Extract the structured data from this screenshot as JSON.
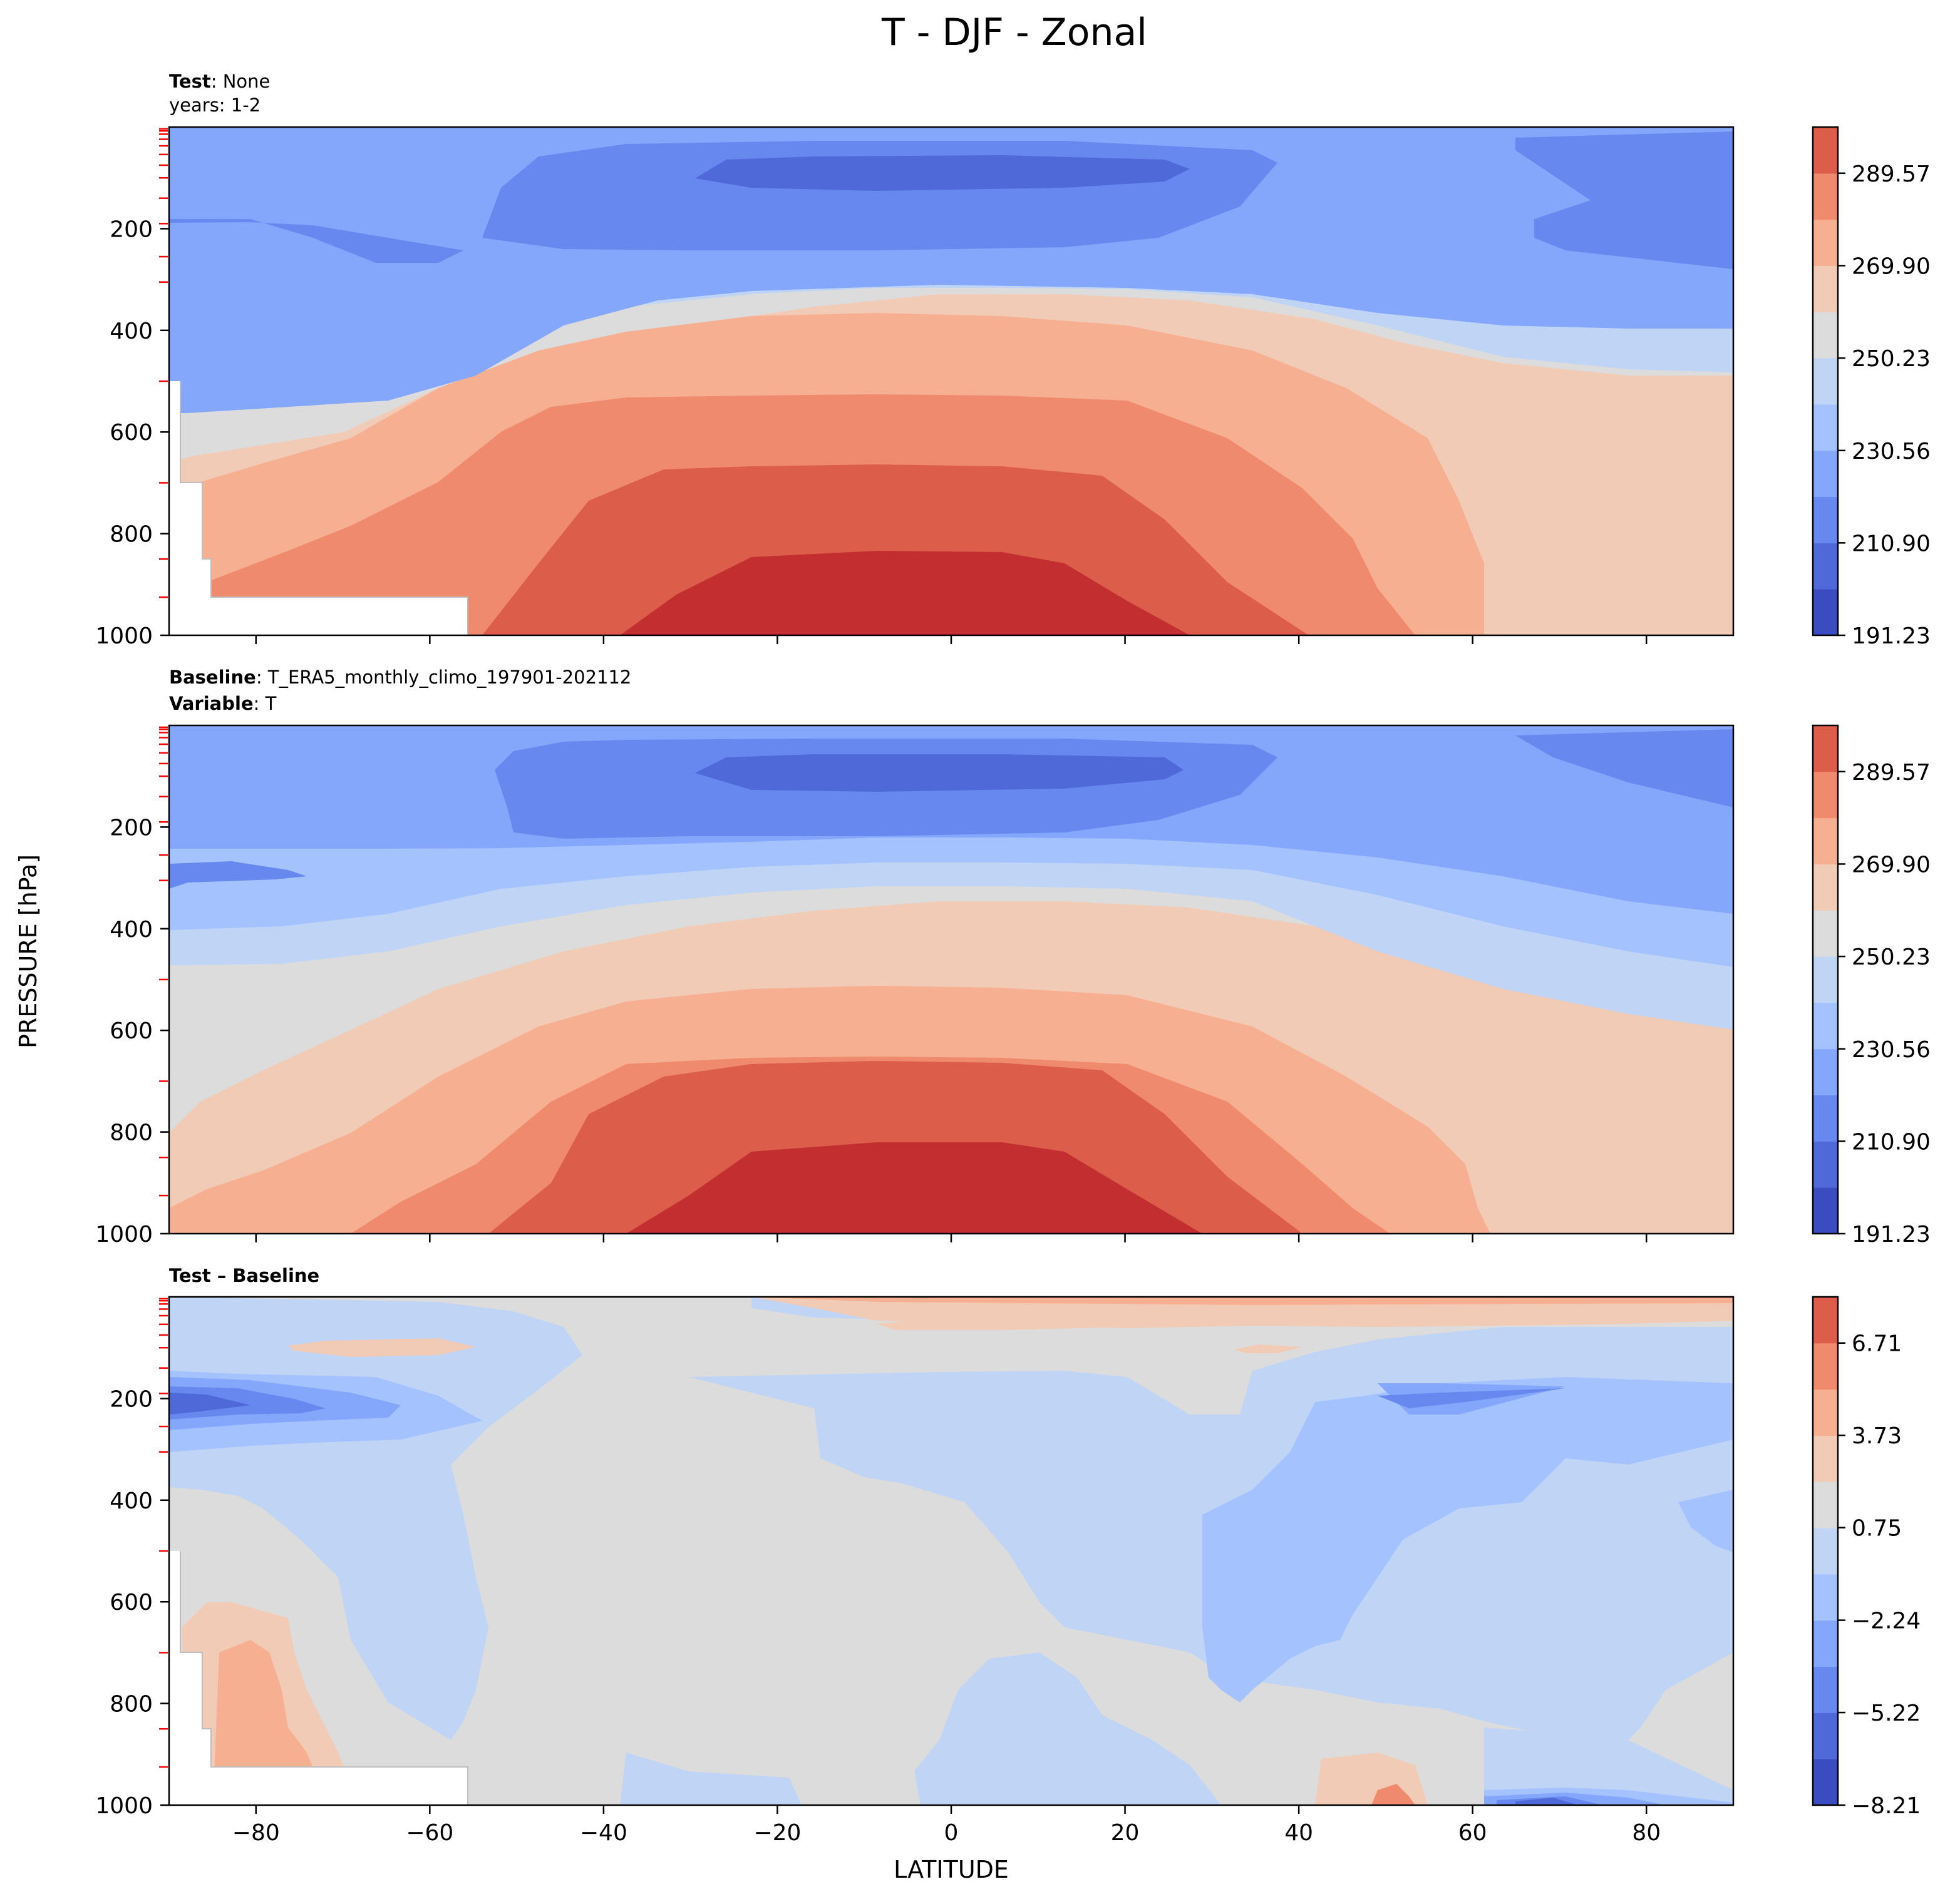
{
  "figure": {
    "suptitle": "T - DJF - Zonal",
    "ylabel": "PRESSURE [hPa]",
    "xlabel": "LATITUDE"
  },
  "palette": {
    "neg": [
      "#3a4cc0",
      "#4f69d9",
      "#6788ee",
      "#84a7fc",
      "#a3c2fe",
      "#c0d4f5"
    ],
    "zero": "#dcdcdc",
    "pos": [
      "#f2cbb7",
      "#f7af91",
      "#f08a6c",
      "#dc5d4a",
      "#c32e31"
    ],
    "axis": "#000000",
    "marker": "#ff0000",
    "missing": "#ffffff"
  },
  "x_ticks": [
    "−80",
    "−60",
    "−40",
    "−20",
    "0",
    "20",
    "40",
    "60",
    "80"
  ],
  "y_ticks": [
    "200",
    "400",
    "600",
    "800",
    "1000"
  ],
  "chart_data": [
    {
      "type": "contour",
      "panel": "test",
      "subtitle_bold": "Test",
      "subtitle_rest": ": None",
      "subtitle_line2": "years: 1-2",
      "xlim": [
        -90,
        90
      ],
      "ylim": [
        1000,
        0
      ],
      "x_ticks": [
        -80,
        -60,
        -40,
        -20,
        0,
        20,
        40,
        60,
        80
      ],
      "y_ticks": [
        200,
        400,
        600,
        800,
        1000
      ],
      "colorbar": {
        "min": 191.23,
        "max": 299.4,
        "levels": 11,
        "tick_values": [
          191.23,
          210.9,
          230.56,
          250.23,
          269.9,
          289.57
        ],
        "tick_labels": [
          "191.23",
          "210.90",
          "230.56",
          "250.23",
          "269.90",
          "289.57"
        ]
      },
      "missing_region": [
        [
          -90,
          500
        ],
        [
          -88,
          500
        ],
        [
          -88,
          700
        ],
        [
          -86,
          700
        ],
        [
          -86,
          850
        ],
        [
          -85,
          850
        ],
        [
          -85,
          925
        ],
        [
          -55.5,
          925
        ],
        [
          -55.5,
          1000
        ],
        [
          -90,
          1000
        ]
      ]
    },
    {
      "type": "contour",
      "panel": "baseline",
      "subtitle_bold": "Baseline",
      "subtitle_rest": ": T_ERA5_monthly_climo_197901-202112",
      "subtitle_line2_bold": "Variable",
      "subtitle_line2_rest": ": T",
      "xlim": [
        -90,
        90
      ],
      "ylim": [
        1000,
        0
      ],
      "x_ticks": [
        -80,
        -60,
        -40,
        -20,
        0,
        20,
        40,
        60,
        80
      ],
      "y_ticks": [
        200,
        400,
        600,
        800,
        1000
      ],
      "colorbar": {
        "min": 191.23,
        "max": 299.4,
        "levels": 11,
        "tick_values": [
          191.23,
          210.9,
          230.56,
          250.23,
          269.9,
          289.57
        ],
        "tick_labels": [
          "191.23",
          "210.90",
          "230.56",
          "250.23",
          "269.90",
          "289.57"
        ]
      }
    },
    {
      "type": "contour",
      "panel": "difference",
      "subtitle_bold": "Test – Baseline",
      "xlim": [
        -90,
        90
      ],
      "ylim": [
        1000,
        0
      ],
      "x_ticks": [
        -80,
        -60,
        -40,
        -20,
        0,
        20,
        40,
        60,
        80
      ],
      "y_ticks": [
        200,
        400,
        600,
        800,
        1000
      ],
      "colorbar": {
        "min": -8.21,
        "max": 8.2,
        "levels": 11,
        "tick_values": [
          -8.21,
          -5.22,
          -2.24,
          0.75,
          3.73,
          6.71
        ],
        "tick_labels": [
          "−8.21",
          "−5.22",
          "−2.24",
          "0.75",
          "3.73",
          "6.71"
        ]
      },
      "missing_region": [
        [
          -90,
          500
        ],
        [
          -88,
          500
        ],
        [
          -88,
          700
        ],
        [
          -86,
          700
        ],
        [
          -86,
          850
        ],
        [
          -85,
          850
        ],
        [
          -85,
          925
        ],
        [
          -55.5,
          925
        ],
        [
          -55.5,
          1000
        ],
        [
          -90,
          1000
        ]
      ]
    }
  ],
  "model_levels_hpa": [
    3.6,
    7.6,
    14,
    24,
    37,
    54,
    75,
    100,
    140,
    190,
    255,
    305,
    500,
    700,
    850,
    925
  ]
}
